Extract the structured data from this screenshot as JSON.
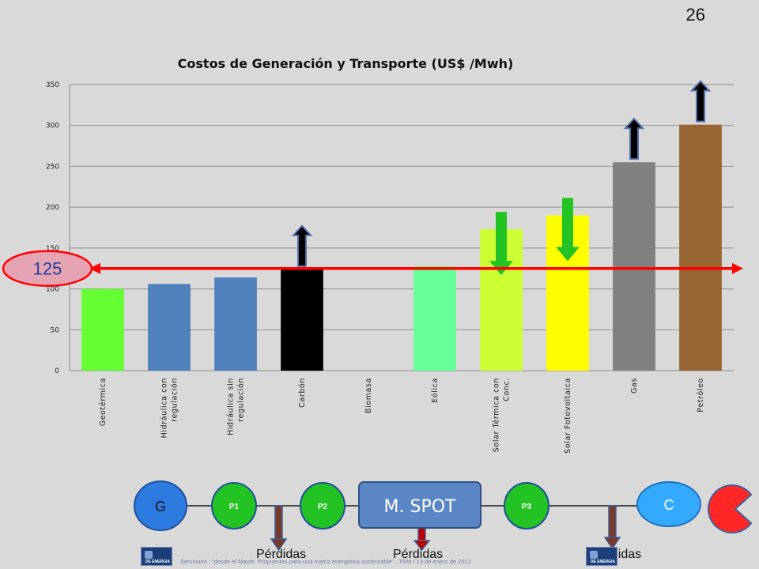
{
  "slide_number": "26",
  "chart_data": {
    "type": "bar",
    "title": "Costos de Generación y Transporte (US$ /Mwh)",
    "categories": [
      "Geotérmica",
      "Hidráulica con regulación",
      "Hidráulica sin regulación",
      "Carbón",
      "Biomasa",
      "Eólica",
      "Solar Térmica con Conc.",
      "Solar Fotovoltaica",
      "Gas",
      "Petróleo"
    ],
    "category_lines": [
      [
        "Geotérmica"
      ],
      [
        "Hidráulica con",
        "regulación"
      ],
      [
        "Hidráulica sin",
        "regulación"
      ],
      [
        "Carbón"
      ],
      [
        "Biomasa"
      ],
      [
        "Eólica"
      ],
      [
        "Solar Térmica con",
        "Conc."
      ],
      [
        "Solar Fotovoltaica"
      ],
      [
        "Gas"
      ],
      [
        "Petróleo"
      ]
    ],
    "values": [
      100,
      106,
      114,
      124,
      0,
      128,
      173,
      190,
      255,
      301
    ],
    "colors": [
      "#66ff33",
      "#4f81bd",
      "#4f81bd",
      "#000000",
      "#d9d9d9",
      "#66ff99",
      "#ccff33",
      "#ffff00",
      "#808080",
      "#996633"
    ],
    "ylim": [
      0,
      350
    ],
    "yticks": [
      0,
      50,
      100,
      150,
      200,
      250,
      300,
      350
    ],
    "grid": true,
    "reference_line": {
      "value": 125,
      "label": "125",
      "color": "#ff0000"
    },
    "arrows_up": [
      "Carbón",
      "Gas",
      "Petróleo"
    ],
    "arrows_down": [
      "Solar Térmica con Conc.",
      "Solar Fotovoltaica"
    ]
  },
  "flow": {
    "generator": "G",
    "points": [
      "P1",
      "P2",
      "P3"
    ],
    "spot": "M. SPOT",
    "consumer": "C",
    "losses": [
      "Pérdidas",
      "Pérdidas",
      "Pérdidas"
    ],
    "colors": {
      "node_green": "#22c322",
      "generator": "#2d7be0",
      "spot": "#5b86c5",
      "consumer": "#33aaff",
      "pacman": "#ff2626",
      "loss_arrow": "#7a3a2a"
    }
  },
  "logos": [
    {
      "icon": "ministerio-energia-logo",
      "text": "DE ENERGIA"
    },
    {
      "icon": "ministerio-energia-logo",
      "text": "DE ENERGIA"
    }
  ],
  "footer": "Seminario : \"desde el Maule, Propuestas para una matriz energética sustentable\" . TRM  /  13 de enero de 2012"
}
